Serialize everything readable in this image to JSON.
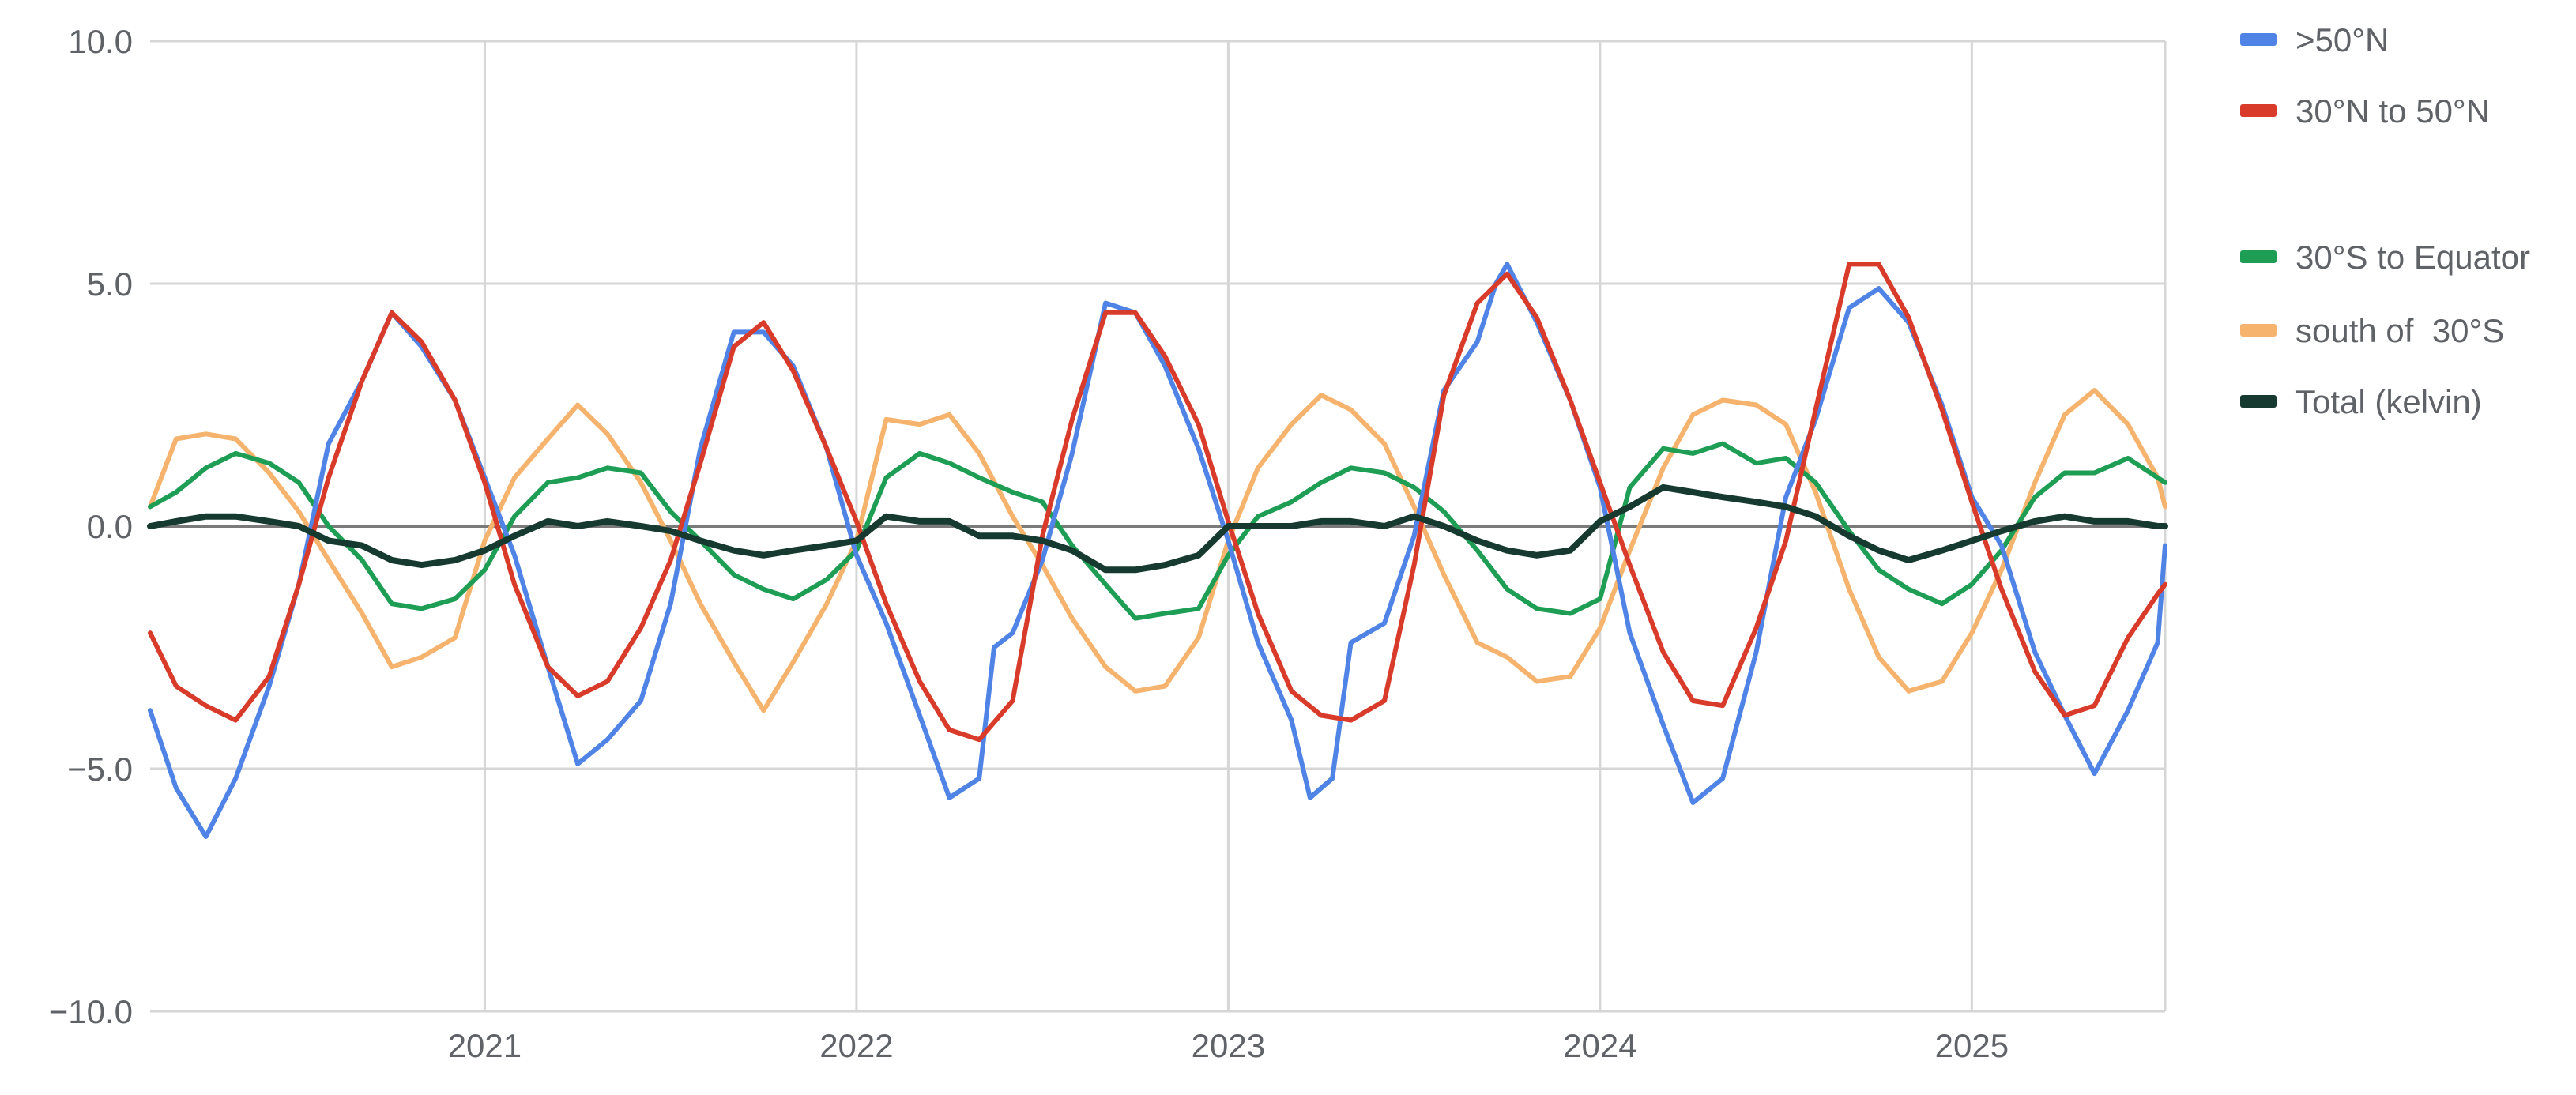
{
  "chart_data": {
    "type": "line",
    "title": "",
    "xlabel": "",
    "ylabel": "",
    "xlim": [
      2020.1,
      2025.52
    ],
    "ylim": [
      -10,
      10
    ],
    "grid": true,
    "legend_position": "right",
    "x_ticks": [
      2021,
      2022,
      2023,
      2024,
      2025
    ],
    "x_tick_labels": [
      "2021",
      "2022",
      "2023",
      "2024",
      "2025"
    ],
    "y_ticks": [
      -10,
      -5,
      0,
      5,
      10
    ],
    "y_tick_labels": [
      "−10.0",
      "−5.0",
      "0.0",
      "5.0",
      "10.0"
    ],
    "series": [
      {
        "name": ">50°N",
        "color": "#4f83e6",
        "legend_group": 1,
        "x": [
          2020.1,
          2020.17,
          2020.25,
          2020.33,
          2020.42,
          2020.5,
          2020.58,
          2020.67,
          2020.75,
          2020.83,
          2020.92,
          2021.0,
          2021.08,
          2021.17,
          2021.25,
          2021.33,
          2021.42,
          2021.5,
          2021.58,
          2021.67,
          2021.75,
          2021.83,
          2021.92,
          2022.0,
          2022.08,
          2022.17,
          2022.25,
          2022.33,
          2022.37,
          2022.42,
          2022.5,
          2022.58,
          2022.67,
          2022.75,
          2022.83,
          2022.92,
          2023.0,
          2023.08,
          2023.17,
          2023.22,
          2023.28,
          2023.33,
          2023.42,
          2023.5,
          2023.58,
          2023.67,
          2023.72,
          2023.75,
          2023.83,
          2023.92,
          2024.0,
          2024.08,
          2024.17,
          2024.25,
          2024.33,
          2024.42,
          2024.5,
          2024.58,
          2024.67,
          2024.75,
          2024.83,
          2024.92,
          2025.0,
          2025.08,
          2025.17,
          2025.25,
          2025.33,
          2025.42,
          2025.5,
          2025.52
        ],
        "values": [
          -3.8,
          -5.4,
          -6.4,
          -5.2,
          -3.3,
          -1.2,
          1.7,
          3.0,
          4.4,
          3.7,
          2.6,
          1.0,
          -0.6,
          -2.9,
          -4.9,
          -4.4,
          -3.6,
          -1.6,
          1.6,
          4.0,
          4.0,
          3.3,
          1.6,
          -0.6,
          -2.0,
          -3.9,
          -5.6,
          -5.2,
          -2.5,
          -2.2,
          -0.7,
          1.5,
          4.6,
          4.4,
          3.3,
          1.6,
          -0.3,
          -2.4,
          -4.0,
          -5.6,
          -5.2,
          -2.4,
          -2.0,
          -0.2,
          2.8,
          3.8,
          5.0,
          5.4,
          4.2,
          2.6,
          0.8,
          -2.2,
          -4.1,
          -5.7,
          -5.2,
          -2.6,
          0.6,
          2.2,
          4.5,
          4.9,
          4.2,
          2.5,
          0.6,
          -0.4,
          -2.6,
          -3.9,
          -5.1,
          -3.8,
          -2.4,
          -0.4
        ]
      },
      {
        "name": "30°N to 50°N",
        "color": "#d93b2b",
        "legend_group": 1,
        "x": [
          2020.1,
          2020.17,
          2020.25,
          2020.33,
          2020.42,
          2020.5,
          2020.58,
          2020.67,
          2020.75,
          2020.83,
          2020.92,
          2021.0,
          2021.08,
          2021.17,
          2021.25,
          2021.33,
          2021.42,
          2021.5,
          2021.58,
          2021.67,
          2021.75,
          2021.83,
          2021.92,
          2022.0,
          2022.08,
          2022.17,
          2022.25,
          2022.33,
          2022.42,
          2022.5,
          2022.58,
          2022.67,
          2022.75,
          2022.83,
          2022.92,
          2023.0,
          2023.08,
          2023.17,
          2023.25,
          2023.33,
          2023.42,
          2023.5,
          2023.58,
          2023.67,
          2023.75,
          2023.83,
          2023.92,
          2024.0,
          2024.08,
          2024.17,
          2024.25,
          2024.33,
          2024.42,
          2024.5,
          2024.58,
          2024.67,
          2024.75,
          2024.83,
          2024.92,
          2025.0,
          2025.08,
          2025.17,
          2025.25,
          2025.33,
          2025.42,
          2025.5,
          2025.52
        ],
        "values": [
          -2.2,
          -3.3,
          -3.7,
          -4.0,
          -3.1,
          -1.2,
          1.0,
          3.0,
          4.4,
          3.8,
          2.6,
          0.9,
          -1.2,
          -2.9,
          -3.5,
          -3.2,
          -2.1,
          -0.7,
          1.3,
          3.7,
          4.2,
          3.2,
          1.6,
          0.1,
          -1.6,
          -3.2,
          -4.2,
          -4.4,
          -3.6,
          -0.2,
          2.2,
          4.4,
          4.4,
          3.5,
          2.1,
          0.1,
          -1.8,
          -3.4,
          -3.9,
          -4.0,
          -3.6,
          -0.8,
          2.7,
          4.6,
          5.2,
          4.3,
          2.6,
          0.9,
          -0.8,
          -2.6,
          -3.6,
          -3.7,
          -2.1,
          -0.3,
          2.4,
          5.4,
          5.4,
          4.3,
          2.4,
          0.5,
          -1.3,
          -3.0,
          -3.9,
          -3.7,
          -2.3,
          -1.4,
          -1.2
        ]
      },
      {
        "name": "30°S to Equator",
        "color": "#1e9e55",
        "legend_group": 2,
        "x": [
          2020.1,
          2020.17,
          2020.25,
          2020.33,
          2020.42,
          2020.5,
          2020.58,
          2020.67,
          2020.75,
          2020.83,
          2020.92,
          2021.0,
          2021.08,
          2021.17,
          2021.25,
          2021.33,
          2021.42,
          2021.5,
          2021.58,
          2021.67,
          2021.75,
          2021.83,
          2021.92,
          2022.0,
          2022.08,
          2022.17,
          2022.25,
          2022.33,
          2022.42,
          2022.5,
          2022.58,
          2022.67,
          2022.75,
          2022.83,
          2022.92,
          2023.0,
          2023.08,
          2023.17,
          2023.25,
          2023.33,
          2023.42,
          2023.5,
          2023.58,
          2023.67,
          2023.75,
          2023.83,
          2023.92,
          2024.0,
          2024.08,
          2024.17,
          2024.25,
          2024.33,
          2024.42,
          2024.5,
          2024.58,
          2024.67,
          2024.75,
          2024.83,
          2024.92,
          2025.0,
          2025.08,
          2025.17,
          2025.25,
          2025.33,
          2025.42,
          2025.5,
          2025.52
        ],
        "values": [
          0.4,
          0.7,
          1.2,
          1.5,
          1.3,
          0.9,
          0.0,
          -0.7,
          -1.6,
          -1.7,
          -1.5,
          -0.9,
          0.2,
          0.9,
          1.0,
          1.2,
          1.1,
          0.3,
          -0.3,
          -1.0,
          -1.3,
          -1.5,
          -1.1,
          -0.5,
          1.0,
          1.5,
          1.3,
          1.0,
          0.7,
          0.5,
          -0.4,
          -1.2,
          -1.9,
          -1.8,
          -1.7,
          -0.6,
          0.2,
          0.5,
          0.9,
          1.2,
          1.1,
          0.8,
          0.3,
          -0.5,
          -1.3,
          -1.7,
          -1.8,
          -1.5,
          0.8,
          1.6,
          1.5,
          1.7,
          1.3,
          1.4,
          0.9,
          -0.1,
          -0.9,
          -1.3,
          -1.6,
          -1.2,
          -0.5,
          0.6,
          1.1,
          1.1,
          1.4,
          1.0,
          0.9
        ]
      },
      {
        "name": "south of  30°S",
        "color": "#f5b36d",
        "legend_group": 2,
        "x": [
          2020.1,
          2020.17,
          2020.25,
          2020.33,
          2020.42,
          2020.5,
          2020.58,
          2020.67,
          2020.75,
          2020.83,
          2020.92,
          2021.0,
          2021.08,
          2021.17,
          2021.25,
          2021.33,
          2021.42,
          2021.5,
          2021.58,
          2021.67,
          2021.75,
          2021.83,
          2021.92,
          2022.0,
          2022.08,
          2022.17,
          2022.25,
          2022.33,
          2022.42,
          2022.5,
          2022.58,
          2022.67,
          2022.75,
          2022.83,
          2022.92,
          2023.0,
          2023.08,
          2023.17,
          2023.25,
          2023.33,
          2023.42,
          2023.5,
          2023.58,
          2023.67,
          2023.75,
          2023.83,
          2023.92,
          2024.0,
          2024.08,
          2024.17,
          2024.25,
          2024.33,
          2024.42,
          2024.5,
          2024.58,
          2024.67,
          2024.75,
          2024.83,
          2024.92,
          2025.0,
          2025.08,
          2025.17,
          2025.25,
          2025.33,
          2025.42,
          2025.5,
          2025.52
        ],
        "values": [
          0.4,
          1.8,
          1.9,
          1.8,
          1.1,
          0.3,
          -0.7,
          -1.8,
          -2.9,
          -2.7,
          -2.3,
          -0.3,
          1.0,
          1.8,
          2.5,
          1.9,
          0.9,
          -0.3,
          -1.6,
          -2.8,
          -3.8,
          -2.8,
          -1.6,
          -0.3,
          2.2,
          2.1,
          2.3,
          1.5,
          0.2,
          -0.8,
          -1.9,
          -2.9,
          -3.4,
          -3.3,
          -2.3,
          -0.3,
          1.2,
          2.1,
          2.7,
          2.4,
          1.7,
          0.4,
          -1.0,
          -2.4,
          -2.7,
          -3.2,
          -3.1,
          -2.1,
          -0.5,
          1.2,
          2.3,
          2.6,
          2.5,
          2.1,
          0.7,
          -1.3,
          -2.7,
          -3.4,
          -3.2,
          -2.2,
          -0.9,
          0.9,
          2.3,
          2.8,
          2.1,
          1.0,
          0.4
        ]
      },
      {
        "name": "Total (kelvin)",
        "color": "#163a2f",
        "legend_group": 2,
        "x": [
          2020.1,
          2020.17,
          2020.25,
          2020.33,
          2020.42,
          2020.5,
          2020.58,
          2020.67,
          2020.75,
          2020.83,
          2020.92,
          2021.0,
          2021.08,
          2021.17,
          2021.25,
          2021.33,
          2021.42,
          2021.5,
          2021.58,
          2021.67,
          2021.75,
          2021.83,
          2021.92,
          2022.0,
          2022.08,
          2022.17,
          2022.25,
          2022.33,
          2022.42,
          2022.5,
          2022.58,
          2022.67,
          2022.75,
          2022.83,
          2022.92,
          2023.0,
          2023.08,
          2023.17,
          2023.25,
          2023.33,
          2023.42,
          2023.5,
          2023.58,
          2023.67,
          2023.75,
          2023.83,
          2023.92,
          2024.0,
          2024.08,
          2024.17,
          2024.25,
          2024.33,
          2024.42,
          2024.5,
          2024.58,
          2024.67,
          2024.75,
          2024.83,
          2024.92,
          2025.0,
          2025.08,
          2025.17,
          2025.25,
          2025.33,
          2025.42,
          2025.5,
          2025.52
        ],
        "values": [
          0.0,
          0.1,
          0.2,
          0.2,
          0.1,
          0.0,
          -0.3,
          -0.4,
          -0.7,
          -0.8,
          -0.7,
          -0.5,
          -0.2,
          0.1,
          0.0,
          0.1,
          0.0,
          -0.1,
          -0.3,
          -0.5,
          -0.6,
          -0.5,
          -0.4,
          -0.3,
          0.2,
          0.1,
          0.1,
          -0.2,
          -0.2,
          -0.3,
          -0.5,
          -0.9,
          -0.9,
          -0.8,
          -0.6,
          0.0,
          0.0,
          0.0,
          0.1,
          0.1,
          0.0,
          0.2,
          0.0,
          -0.3,
          -0.5,
          -0.6,
          -0.5,
          0.1,
          0.4,
          0.8,
          0.7,
          0.6,
          0.5,
          0.4,
          0.2,
          -0.2,
          -0.5,
          -0.7,
          -0.5,
          -0.3,
          -0.1,
          0.1,
          0.2,
          0.1,
          0.1,
          0.0,
          0.0
        ]
      }
    ]
  }
}
